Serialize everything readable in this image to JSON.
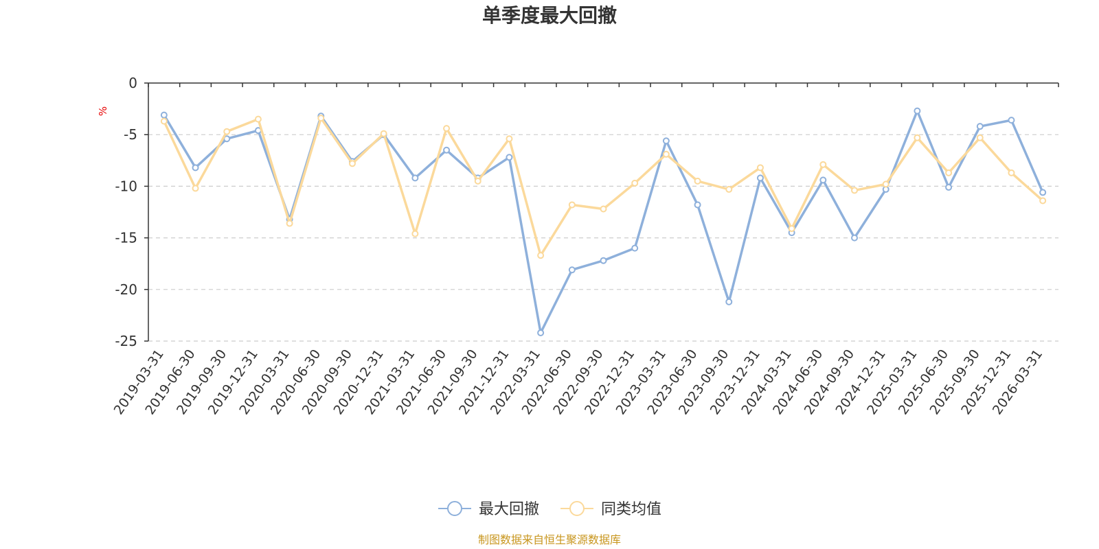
{
  "chart_data": {
    "type": "line",
    "title": "单季度最大回撤",
    "ylabel": "%",
    "ylim": [
      -25,
      0
    ],
    "yticks": [
      0,
      -5,
      -10,
      -15,
      -20,
      -25
    ],
    "grid": true,
    "legend_position": "bottom",
    "categories": [
      "2019-03-31",
      "2019-06-30",
      "2019-09-30",
      "2019-12-31",
      "2020-03-31",
      "2020-06-30",
      "2020-09-30",
      "2020-12-31",
      "2021-03-31",
      "2021-06-30",
      "2021-09-30",
      "2021-12-31",
      "2022-03-31",
      "2022-06-30",
      "2022-09-30",
      "2022-12-31",
      "2023-03-31",
      "2023-06-30",
      "2023-09-30",
      "2023-12-31",
      "2024-03-31",
      "2024-06-30",
      "2024-09-30",
      "2024-12-31",
      "2025-03-31",
      "2025-06-30",
      "2025-09-30",
      "2025-12-31",
      "2026-03-31"
    ],
    "series": [
      {
        "name": "最大回撤",
        "color": "#8eb0db",
        "values": [
          -3.1,
          -8.2,
          -5.4,
          -4.6,
          -13.2,
          -3.2,
          -7.6,
          -5.0,
          -9.2,
          -6.5,
          -9.2,
          -7.2,
          -24.2,
          -18.1,
          -17.2,
          -16.0,
          -5.6,
          -11.8,
          -21.2,
          -9.2,
          -14.5,
          -9.4,
          -15.0,
          -10.3,
          -2.7,
          -10.1,
          -4.2,
          -3.6,
          -10.6
        ]
      },
      {
        "name": "同类均值",
        "color": "#fbd99b",
        "values": [
          -3.7,
          -10.2,
          -4.7,
          -3.5,
          -13.6,
          -3.4,
          -7.8,
          -4.9,
          -14.6,
          -4.4,
          -9.5,
          -5.4,
          -16.7,
          -11.8,
          -12.2,
          -9.7,
          -6.9,
          -9.5,
          -10.3,
          -8.2,
          -14.1,
          -7.9,
          -10.4,
          -9.8,
          -5.3,
          -8.7,
          -5.3,
          -8.7,
          -11.4
        ]
      }
    ]
  },
  "footer": {
    "source": "制图数据来自恒生聚源数据库"
  },
  "colors": {
    "axis": "#333333",
    "grid": "#cccccc",
    "source": "#c8961e",
    "unit": "#e60000"
  }
}
